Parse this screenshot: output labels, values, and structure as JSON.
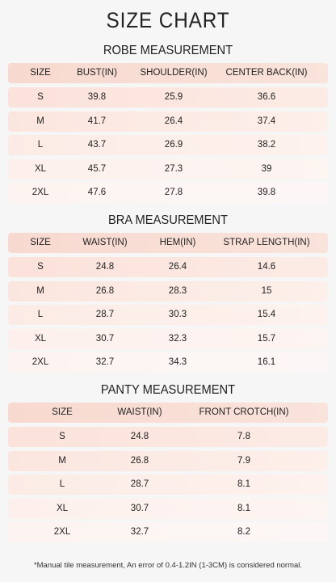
{
  "title": "SIZE CHART",
  "tables": [
    {
      "title": "ROBE MEASUREMENT",
      "columns": [
        "SIZE",
        "BUST(IN)",
        "SHOULDER(IN)",
        "CENTER BACK(IN)"
      ],
      "rows": [
        [
          "S",
          39.8,
          25.9,
          36.6
        ],
        [
          "M",
          41.7,
          26.4,
          37.4
        ],
        [
          "L",
          43.7,
          26.9,
          38.2
        ],
        [
          "XL",
          45.7,
          27.3,
          39
        ],
        [
          "2XL",
          47.6,
          27.8,
          39.8
        ]
      ]
    },
    {
      "title": "BRA MEASUREMENT",
      "columns": [
        "SIZE",
        "WAIST(IN)",
        "HEM(IN)",
        "STRAP LENGTH(IN)"
      ],
      "rows": [
        [
          "S",
          24.8,
          26.4,
          14.6
        ],
        [
          "M",
          26.8,
          28.3,
          15
        ],
        [
          "L",
          28.7,
          30.3,
          15.4
        ],
        [
          "XL",
          30.7,
          32.3,
          15.7
        ],
        [
          "2XL",
          32.7,
          34.3,
          16.1
        ]
      ]
    },
    {
      "title": "PANTY MEASUREMENT",
      "columns": [
        "SIZE",
        "WAIST(IN)",
        "FRONT CROTCH(IN)"
      ],
      "rows": [
        [
          "S",
          24.8,
          7.8
        ],
        [
          "M",
          26.8,
          7.9
        ],
        [
          "L",
          28.7,
          8.1
        ],
        [
          "XL",
          30.7,
          8.1
        ],
        [
          "2XL",
          32.7,
          8.2
        ]
      ]
    }
  ],
  "footnote": "*Manual tile measurement, An error of 0.4-1.2IN (1-3CM) is considered normal."
}
